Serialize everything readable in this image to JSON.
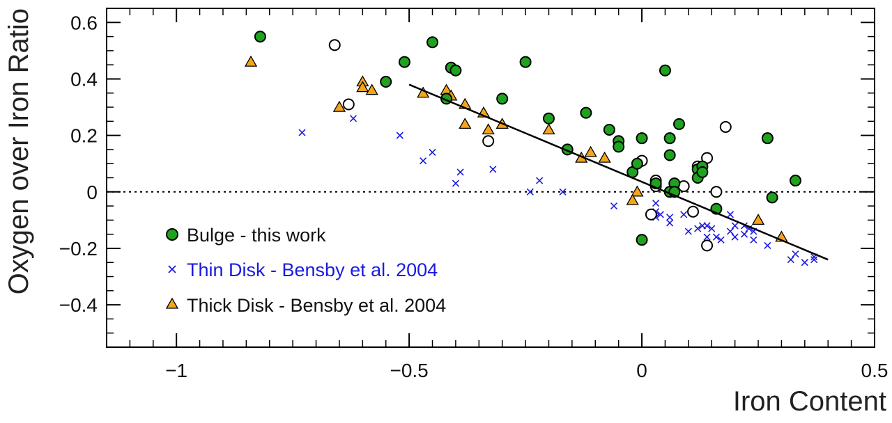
{
  "chart_data": {
    "type": "scatter",
    "xlabel": "Iron Content",
    "ylabel": "Oxygen over Iron Ratio",
    "xlim": [
      -1.15,
      0.5
    ],
    "ylim": [
      -0.55,
      0.65
    ],
    "x_ticks": [
      {
        "value": -1,
        "label": "−1"
      },
      {
        "value": -0.5,
        "label": "−0.5"
      },
      {
        "value": 0,
        "label": "0"
      },
      {
        "value": 0.5,
        "label": "0.5"
      }
    ],
    "y_ticks": [
      {
        "value": 0.6,
        "label": "0.6"
      },
      {
        "value": 0.4,
        "label": "0.4"
      },
      {
        "value": 0.2,
        "label": "0.2"
      },
      {
        "value": 0,
        "label": "0"
      },
      {
        "value": -0.2,
        "label": "−0.2"
      },
      {
        "value": -0.4,
        "label": "−0.4"
      }
    ],
    "reference_line": {
      "y": 0,
      "style": "dotted"
    },
    "fit_line": {
      "x": [
        -0.5,
        0.4
      ],
      "y": [
        0.38,
        -0.24
      ]
    },
    "legend_position": "bottom-left",
    "series": [
      {
        "name": "Bulge - this work",
        "marker": "filled-circle",
        "color": "#1fa21f",
        "text_color": "#111111",
        "points": [
          [
            -0.82,
            0.55
          ],
          [
            -0.55,
            0.39
          ],
          [
            -0.51,
            0.46
          ],
          [
            -0.45,
            0.53
          ],
          [
            -0.41,
            0.44
          ],
          [
            -0.4,
            0.43
          ],
          [
            -0.42,
            0.33
          ],
          [
            -0.3,
            0.33
          ],
          [
            -0.25,
            0.46
          ],
          [
            -0.2,
            0.26
          ],
          [
            -0.16,
            0.15
          ],
          [
            -0.12,
            0.28
          ],
          [
            -0.07,
            0.22
          ],
          [
            -0.05,
            0.18
          ],
          [
            -0.05,
            0.16
          ],
          [
            0.0,
            0.19
          ],
          [
            -0.02,
            0.07
          ],
          [
            -0.01,
            0.1
          ],
          [
            0.05,
            0.43
          ],
          [
            0.06,
            0.19
          ],
          [
            0.06,
            0.13
          ],
          [
            0.08,
            0.24
          ],
          [
            0.07,
            0.03
          ],
          [
            0.06,
            0.0
          ],
          [
            0.07,
            0.0
          ],
          [
            0.12,
            0.08
          ],
          [
            0.12,
            0.05
          ],
          [
            0.13,
            0.09
          ],
          [
            0.13,
            0.07
          ],
          [
            0.03,
            0.03
          ],
          [
            0.16,
            -0.06
          ],
          [
            0.27,
            0.19
          ],
          [
            0.28,
            -0.02
          ],
          [
            0.33,
            0.04
          ],
          [
            0.0,
            -0.17
          ]
        ]
      },
      {
        "name": "",
        "marker": "open-circle",
        "color": "#000000",
        "points": [
          [
            -0.66,
            0.52
          ],
          [
            -0.63,
            0.31
          ],
          [
            -0.33,
            0.18
          ],
          [
            0.0,
            0.11
          ],
          [
            0.03,
            0.04
          ],
          [
            0.03,
            0.02
          ],
          [
            0.09,
            0.02
          ],
          [
            0.12,
            0.09
          ],
          [
            0.14,
            0.12
          ],
          [
            0.16,
            0.0
          ],
          [
            0.18,
            0.23
          ],
          [
            0.02,
            -0.08
          ],
          [
            0.11,
            -0.07
          ],
          [
            0.14,
            -0.19
          ]
        ]
      },
      {
        "name": "Thin Disk - Bensby et al. 2004",
        "marker": "cross",
        "color": "#1a1adf",
        "text_color": "#1a1adf",
        "points": [
          [
            -0.73,
            0.21
          ],
          [
            -0.62,
            0.26
          ],
          [
            -0.52,
            0.2
          ],
          [
            -0.47,
            0.11
          ],
          [
            -0.45,
            0.14
          ],
          [
            -0.4,
            0.03
          ],
          [
            -0.39,
            0.07
          ],
          [
            -0.32,
            0.08
          ],
          [
            -0.24,
            0.0
          ],
          [
            -0.22,
            0.04
          ],
          [
            -0.17,
            0.0
          ],
          [
            -0.06,
            -0.05
          ],
          [
            0.03,
            -0.04
          ],
          [
            0.03,
            -0.07
          ],
          [
            0.03,
            -0.09
          ],
          [
            0.04,
            -0.08
          ],
          [
            0.06,
            -0.09
          ],
          [
            0.06,
            -0.11
          ],
          [
            0.09,
            -0.08
          ],
          [
            0.1,
            -0.14
          ],
          [
            0.12,
            -0.13
          ],
          [
            0.13,
            -0.12
          ],
          [
            0.14,
            -0.12
          ],
          [
            0.14,
            -0.16
          ],
          [
            0.15,
            -0.13
          ],
          [
            0.16,
            -0.16
          ],
          [
            0.17,
            -0.17
          ],
          [
            0.19,
            -0.14
          ],
          [
            0.19,
            -0.08
          ],
          [
            0.2,
            -0.12
          ],
          [
            0.2,
            -0.16
          ],
          [
            0.22,
            -0.12
          ],
          [
            0.22,
            -0.15
          ],
          [
            0.23,
            -0.13
          ],
          [
            0.24,
            -0.14
          ],
          [
            0.24,
            -0.17
          ],
          [
            0.27,
            -0.19
          ],
          [
            0.32,
            -0.24
          ],
          [
            0.33,
            -0.22
          ],
          [
            0.35,
            -0.25
          ],
          [
            0.37,
            -0.24
          ],
          [
            0.37,
            -0.23
          ],
          [
            0.03,
            0.03
          ]
        ]
      },
      {
        "name": "Thick Disk - Bensby et al. 2004",
        "marker": "triangle",
        "color": "#f5a51b",
        "text_color": "#111111",
        "points": [
          [
            -0.84,
            0.46
          ],
          [
            -0.65,
            0.3
          ],
          [
            -0.6,
            0.39
          ],
          [
            -0.6,
            0.37
          ],
          [
            -0.58,
            0.36
          ],
          [
            -0.47,
            0.35
          ],
          [
            -0.42,
            0.36
          ],
          [
            -0.41,
            0.34
          ],
          [
            -0.38,
            0.31
          ],
          [
            -0.38,
            0.24
          ],
          [
            -0.34,
            0.28
          ],
          [
            -0.33,
            0.22
          ],
          [
            -0.3,
            0.24
          ],
          [
            -0.2,
            0.22
          ],
          [
            -0.13,
            0.12
          ],
          [
            -0.11,
            0.14
          ],
          [
            -0.08,
            0.12
          ],
          [
            -0.01,
            0.0
          ],
          [
            -0.02,
            -0.03
          ],
          [
            0.25,
            -0.1
          ],
          [
            0.3,
            -0.16
          ]
        ]
      }
    ]
  }
}
